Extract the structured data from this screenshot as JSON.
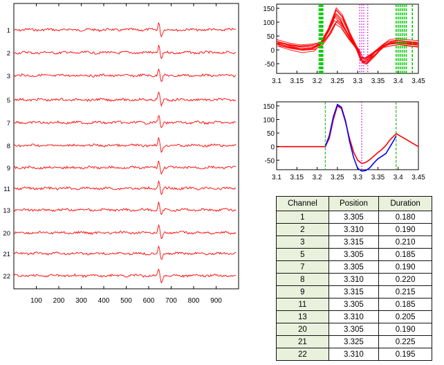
{
  "chart_data": [
    {
      "type": "line",
      "title": "",
      "xlabel": "",
      "ylabel": "",
      "x_ticks": [
        100,
        200,
        300,
        400,
        500,
        600,
        700,
        800,
        900
      ],
      "xlim": [
        0,
        1000
      ],
      "series_color": "#ff0000",
      "channel_labels": [
        "1",
        "2",
        "3",
        "5",
        "7",
        "8",
        "9",
        "11",
        "13",
        "20",
        "21",
        "22"
      ],
      "spike_x": 650
    },
    {
      "type": "line",
      "title": "",
      "xlabel": "",
      "ylabel": "",
      "xlim": [
        3.1,
        3.45
      ],
      "ylim": [
        -85,
        165
      ],
      "x_ticks": [
        "3.1",
        "3.15",
        "3.2",
        "3.25",
        "3.3",
        "3.35",
        "3.4",
        "3.45"
      ],
      "y_ticks": [
        "150",
        "100",
        "50",
        "0",
        "-50"
      ],
      "series_color": "#ff0000",
      "n_traces": 12,
      "marker_colors": {
        "start_end": "#00cc00",
        "peak": "#cc00cc"
      },
      "start_markers": [
        3.205,
        3.208,
        3.21,
        3.212,
        3.214
      ],
      "end_markers": [
        3.395,
        3.4,
        3.405,
        3.41,
        3.415,
        3.42,
        3.435
      ],
      "peak_markers": [
        3.305,
        3.31,
        3.315,
        3.325
      ]
    },
    {
      "type": "line",
      "title": "",
      "xlabel": "",
      "ylabel": "",
      "xlim": [
        3.1,
        3.45
      ],
      "ylim": [
        -85,
        165
      ],
      "x_ticks": [
        "3.1",
        "3.15",
        "3.2",
        "3.25",
        "3.3",
        "3.35",
        "3.4",
        "3.45"
      ],
      "y_ticks": [
        "150",
        "100",
        "50",
        "0",
        "-50"
      ],
      "series": [
        {
          "color": "#ff0000",
          "x": [
            3.1,
            3.22,
            3.23,
            3.24,
            3.25,
            3.26,
            3.27,
            3.28,
            3.29,
            3.3,
            3.31,
            3.32,
            3.33,
            3.34,
            3.35,
            3.36,
            3.37,
            3.38,
            3.39,
            3.395,
            3.45
          ],
          "values": [
            0,
            0,
            30,
            100,
            150,
            140,
            90,
            30,
            -20,
            -50,
            -62,
            -58,
            -48,
            -35,
            -22,
            -10,
            5,
            25,
            40,
            48,
            0
          ]
        },
        {
          "color": "#0000ff",
          "x": [
            3.22,
            3.23,
            3.24,
            3.25,
            3.26,
            3.27,
            3.28,
            3.29,
            3.3,
            3.31,
            3.32,
            3.33,
            3.34,
            3.35,
            3.36,
            3.37,
            3.38,
            3.39,
            3.395
          ],
          "values": [
            0,
            40,
            110,
            155,
            145,
            95,
            20,
            -40,
            -80,
            -90,
            -88,
            -78,
            -60,
            -45,
            -35,
            -25,
            0,
            25,
            40
          ]
        }
      ],
      "marker_colors": {
        "start_end": "#00aa00",
        "peak": "#cc00cc"
      },
      "start_markers": [
        3.22
      ],
      "end_markers": [
        3.395
      ],
      "peak_markers": [
        3.31
      ]
    },
    {
      "type": "table",
      "columns": [
        "Channel",
        "Position",
        "Duration"
      ],
      "rows": [
        [
          "1",
          "3.305",
          "0.180"
        ],
        [
          "2",
          "3.310",
          "0.190"
        ],
        [
          "3",
          "3.315",
          "0.210"
        ],
        [
          "5",
          "3.305",
          "0.185"
        ],
        [
          "7",
          "3.305",
          "0.190"
        ],
        [
          "8",
          "3.310",
          "0.220"
        ],
        [
          "9",
          "3.315",
          "0.215"
        ],
        [
          "11",
          "3.305",
          "0.185"
        ],
        [
          "13",
          "3.310",
          "0.205"
        ],
        [
          "20",
          "3.305",
          "0.190"
        ],
        [
          "21",
          "3.325",
          "0.225"
        ],
        [
          "22",
          "3.310",
          "0.195"
        ]
      ]
    }
  ]
}
